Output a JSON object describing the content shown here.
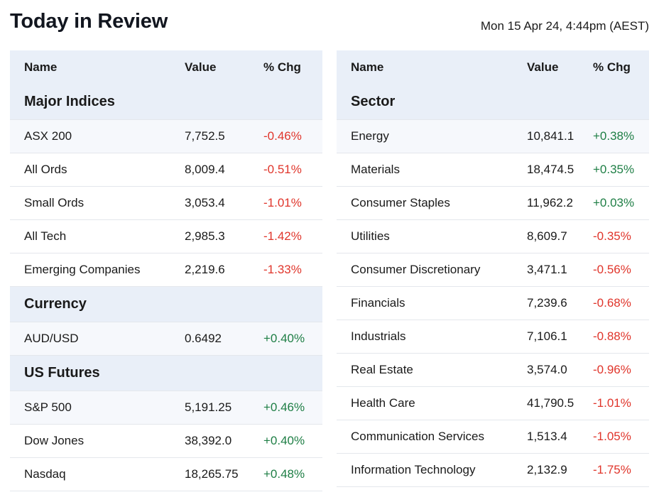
{
  "header": {
    "title": "Today in Review",
    "timestamp": "Mon 15 Apr 24, 4:44pm (AEST)"
  },
  "columns": {
    "name": "Name",
    "value": "Value",
    "chg": "% Chg"
  },
  "left": {
    "sections": [
      {
        "title": "Major Indices",
        "rows": [
          {
            "name": "ASX 200",
            "value": "7,752.5",
            "chg": "-0.46%"
          },
          {
            "name": "All Ords",
            "value": "8,009.4",
            "chg": "-0.51%"
          },
          {
            "name": "Small Ords",
            "value": "3,053.4",
            "chg": "-1.01%"
          },
          {
            "name": "All Tech",
            "value": "2,985.3",
            "chg": "-1.42%"
          },
          {
            "name": "Emerging Companies",
            "value": "2,219.6",
            "chg": "-1.33%"
          }
        ]
      },
      {
        "title": "Currency",
        "rows": [
          {
            "name": "AUD/USD",
            "value": "0.6492",
            "chg": "+0.40%"
          }
        ]
      },
      {
        "title": "US Futures",
        "rows": [
          {
            "name": "S&P 500",
            "value": "5,191.25",
            "chg": "+0.46%"
          },
          {
            "name": "Dow Jones",
            "value": "38,392.0",
            "chg": "+0.40%"
          },
          {
            "name": "Nasdaq",
            "value": "18,265.75",
            "chg": "+0.48%"
          }
        ]
      }
    ]
  },
  "right": {
    "sections": [
      {
        "title": "Sector",
        "rows": [
          {
            "name": "Energy",
            "value": "10,841.1",
            "chg": "+0.38%"
          },
          {
            "name": "Materials",
            "value": "18,474.5",
            "chg": "+0.35%"
          },
          {
            "name": "Consumer Staples",
            "value": "11,962.2",
            "chg": "+0.03%"
          },
          {
            "name": "Utilities",
            "value": "8,609.7",
            "chg": "-0.35%"
          },
          {
            "name": "Consumer Discretionary",
            "value": "3,471.1",
            "chg": "-0.56%"
          },
          {
            "name": "Financials",
            "value": "7,239.6",
            "chg": "-0.68%"
          },
          {
            "name": "Industrials",
            "value": "7,106.1",
            "chg": "-0.88%"
          },
          {
            "name": "Real Estate",
            "value": "3,574.0",
            "chg": "-0.96%"
          },
          {
            "name": "Health Care",
            "value": "41,790.5",
            "chg": "-1.01%"
          },
          {
            "name": "Communication Services",
            "value": "1,513.4",
            "chg": "-1.05%"
          },
          {
            "name": "Information Technology",
            "value": "2,132.9",
            "chg": "-1.75%"
          }
        ]
      }
    ]
  },
  "colors": {
    "positive": "#1e7e45",
    "negative": "#e0352b",
    "header_bg": "#e9eff8"
  }
}
